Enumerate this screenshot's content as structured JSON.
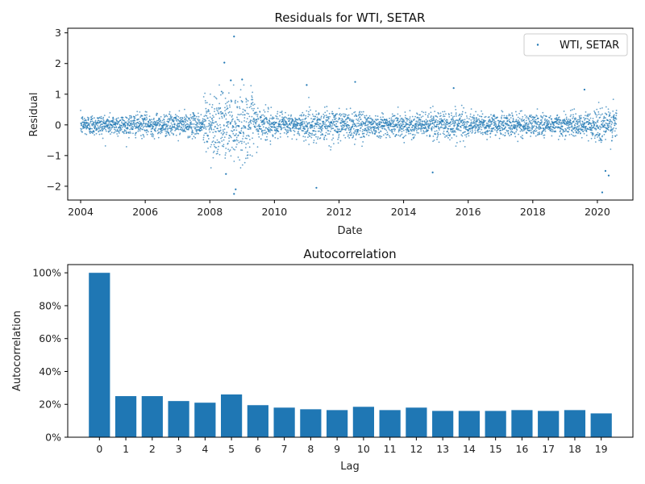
{
  "chart_data": [
    {
      "type": "scatter",
      "title": "Residuals for WTI, SETAR",
      "xlabel": "Date",
      "ylabel": "Residual",
      "xlim": [
        2003.6,
        2021.1
      ],
      "ylim": [
        -2.45,
        3.15
      ],
      "x_ticks": [
        2004,
        2006,
        2008,
        2010,
        2012,
        2014,
        2016,
        2018,
        2020
      ],
      "y_ticks": [
        -2,
        -1,
        0,
        1,
        2,
        3
      ],
      "legend": {
        "placement": "top-right",
        "entries": [
          "WTI, SETAR"
        ]
      },
      "series": [
        {
          "name": "WTI, SETAR",
          "color": "#1f77b4",
          "point_count": 4200,
          "x_range": [
            2004.0,
            2020.6
          ],
          "notable_points": [
            {
              "x": 2008.75,
              "y": 2.88
            },
            {
              "x": 2008.45,
              "y": 2.03
            },
            {
              "x": 2009.0,
              "y": 1.48
            },
            {
              "x": 2008.65,
              "y": 1.45
            },
            {
              "x": 2011.0,
              "y": 1.3
            },
            {
              "x": 2012.5,
              "y": 1.4
            },
            {
              "x": 2015.55,
              "y": 1.2
            },
            {
              "x": 2019.6,
              "y": 1.15
            },
            {
              "x": 2008.75,
              "y": -2.25
            },
            {
              "x": 2008.8,
              "y": -2.1
            },
            {
              "x": 2008.5,
              "y": -1.6
            },
            {
              "x": 2011.3,
              "y": -2.05
            },
            {
              "x": 2014.9,
              "y": -1.55
            },
            {
              "x": 2020.15,
              "y": -2.2
            },
            {
              "x": 2020.25,
              "y": -1.5
            },
            {
              "x": 2020.35,
              "y": -1.65
            }
          ]
        }
      ]
    },
    {
      "type": "bar",
      "title": "Autocorrelation",
      "xlabel": "Lag",
      "ylabel": "Autocorrelation",
      "categories": [
        "0",
        "1",
        "2",
        "3",
        "4",
        "5",
        "6",
        "7",
        "8",
        "9",
        "10",
        "11",
        "12",
        "13",
        "14",
        "15",
        "16",
        "17",
        "18",
        "19"
      ],
      "values": [
        1.0,
        0.25,
        0.25,
        0.22,
        0.21,
        0.26,
        0.195,
        0.18,
        0.17,
        0.165,
        0.185,
        0.165,
        0.18,
        0.16,
        0.16,
        0.16,
        0.165,
        0.16,
        0.165,
        0.145
      ],
      "ylim": [
        0,
        1.05
      ],
      "y_ticks": [
        0,
        0.2,
        0.4,
        0.6,
        0.8,
        1.0
      ],
      "y_tick_labels": [
        "0%",
        "20%",
        "40%",
        "60%",
        "80%",
        "100%"
      ],
      "color": "#1f77b4"
    }
  ]
}
